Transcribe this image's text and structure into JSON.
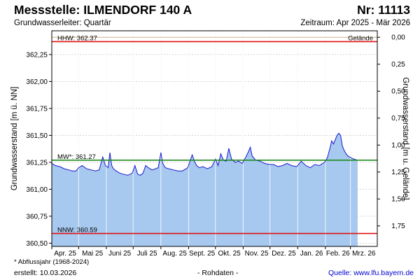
{
  "header": {
    "title": "Messstelle: ILMENDORF 140 A",
    "number": "Nr: 11113",
    "aquifer": "Grundwasserleiter: Quartär",
    "period": "Zeitraum: Apr 2025 - Mär 2026"
  },
  "footer": {
    "footnote": "* Abflussjahr (1968-2024)",
    "created": "erstellt:  10.03.2026",
    "rawdata": "- Rohdaten -",
    "source": "Quelle: www.lfu.bayern.de"
  },
  "colors": {
    "fill": "#a7c8ef",
    "line": "#1a1acc",
    "hhw": "#e01010",
    "nnw": "#e01010",
    "mw": "#1f8a1f",
    "grid": "#d3d3d3",
    "ground": "#c8b48a"
  },
  "chart_data": {
    "type": "area",
    "ylabel": "Grundwasserstand [m ü. NN]",
    "y2label": "Grundwasserstand [m u. Gelände]",
    "ylim": [
      360.47,
      362.47
    ],
    "yticks": [
      "362,25",
      "362,00",
      "361,75",
      "361,50",
      "361,25",
      "361,00",
      "360,75",
      "360,50"
    ],
    "y2ticks": [
      "0,00",
      "0,25",
      "0,50",
      "0,75",
      "1,00",
      "1,25",
      "1,50",
      "1,75"
    ],
    "ground_level": 362.41,
    "ground_label": "Gelände",
    "grid": true,
    "x_start": "2025-04-01",
    "x_end": "2026-03-31",
    "months": [
      "Apr. 25",
      "Mai 25",
      "Juni 25",
      "Juli 25",
      "Aug. 25",
      "Sept. 25",
      "Okt. 25",
      "Nov. 25",
      "Dez. 25",
      "Jan. 26",
      "Feb. 26",
      "Mrz. 26"
    ],
    "reference_lines": [
      {
        "label": "HHW: 362.37",
        "value": 362.37
      },
      {
        "label": "MW*: 361.27",
        "value": 361.27
      },
      {
        "label": "NNW: 360.59",
        "value": 360.59
      }
    ],
    "series": [
      {
        "x": [
          "2025-04-01",
          "2025-04-05",
          "2025-04-10",
          "2025-04-15",
          "2025-04-20",
          "2025-04-24",
          "2025-04-28",
          "2025-05-01",
          "2025-05-05",
          "2025-05-10",
          "2025-05-15",
          "2025-05-20",
          "2025-05-24",
          "2025-05-26",
          "2025-05-28",
          "2025-05-31",
          "2025-06-03",
          "2025-06-05",
          "2025-06-07",
          "2025-06-09",
          "2025-06-12",
          "2025-06-16",
          "2025-06-20",
          "2025-06-25",
          "2025-06-30",
          "2025-07-03",
          "2025-07-06",
          "2025-07-09",
          "2025-07-12",
          "2025-07-15",
          "2025-07-18",
          "2025-07-22",
          "2025-07-26",
          "2025-07-29",
          "2025-08-01",
          "2025-08-03",
          "2025-08-06",
          "2025-08-10",
          "2025-08-15",
          "2025-08-20",
          "2025-08-25",
          "2025-08-31",
          "2025-09-05",
          "2025-09-08",
          "2025-09-10",
          "2025-09-13",
          "2025-09-17",
          "2025-09-22",
          "2025-09-27",
          "2025-10-01",
          "2025-10-04",
          "2025-10-07",
          "2025-10-10",
          "2025-10-13",
          "2025-10-16",
          "2025-10-19",
          "2025-10-23",
          "2025-10-27",
          "2025-10-31",
          "2025-11-04",
          "2025-11-07",
          "2025-11-09",
          "2025-11-11",
          "2025-11-15",
          "2025-11-20",
          "2025-11-25",
          "2025-11-30",
          "2025-12-05",
          "2025-12-10",
          "2025-12-15",
          "2025-12-20",
          "2025-12-25",
          "2025-12-31",
          "2026-01-05",
          "2026-01-10",
          "2026-01-15",
          "2026-01-20",
          "2026-01-25",
          "2026-01-31",
          "2026-02-03",
          "2026-02-06",
          "2026-02-08",
          "2026-02-10",
          "2026-02-12",
          "2026-02-14",
          "2026-02-16",
          "2026-02-18",
          "2026-02-20",
          "2026-02-22",
          "2026-02-24",
          "2026-02-26",
          "2026-02-28",
          "2026-03-02",
          "2026-03-05",
          "2026-03-09"
        ],
        "values": [
          361.24,
          361.22,
          361.21,
          361.19,
          361.18,
          361.17,
          361.17,
          361.2,
          361.22,
          361.19,
          361.18,
          361.17,
          361.18,
          361.24,
          361.3,
          361.22,
          361.2,
          361.34,
          361.22,
          361.19,
          361.17,
          361.15,
          361.14,
          361.13,
          361.15,
          361.22,
          361.14,
          361.13,
          361.15,
          361.22,
          361.2,
          361.18,
          361.19,
          361.2,
          361.34,
          361.24,
          361.2,
          361.19,
          361.18,
          361.17,
          361.17,
          361.2,
          361.32,
          361.25,
          361.22,
          361.2,
          361.21,
          361.19,
          361.21,
          361.28,
          361.22,
          361.33,
          361.27,
          361.26,
          361.38,
          361.28,
          361.25,
          361.26,
          361.24,
          361.3,
          361.35,
          361.39,
          361.31,
          361.27,
          361.26,
          361.24,
          361.23,
          361.23,
          361.21,
          361.22,
          361.24,
          361.22,
          361.21,
          361.26,
          361.22,
          361.2,
          361.23,
          361.22,
          361.25,
          361.29,
          361.38,
          361.45,
          361.42,
          361.46,
          361.5,
          361.52,
          361.5,
          361.4,
          361.36,
          361.33,
          361.31,
          361.3,
          361.29,
          361.28,
          361.27
        ]
      }
    ]
  }
}
